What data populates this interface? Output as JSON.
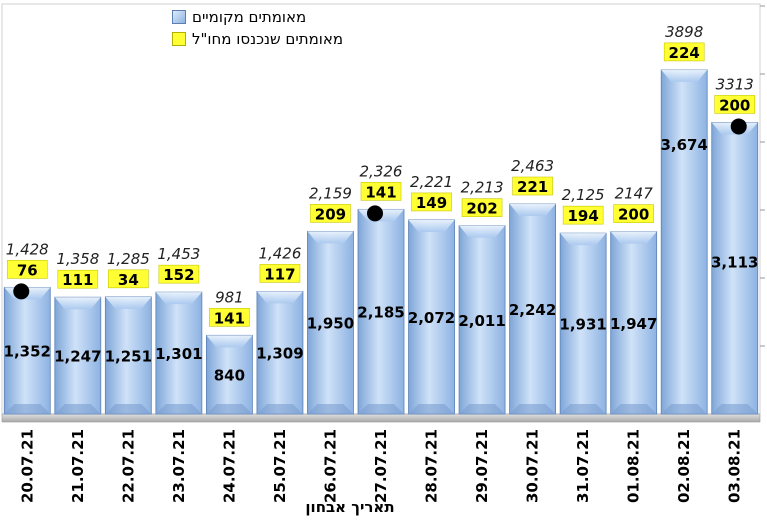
{
  "chart_data": {
    "type": "bar",
    "stacked": true,
    "categories": [
      "20.07.21",
      "21.07.21",
      "22.07.21",
      "23.07.21",
      "24.07.21",
      "25.07.21",
      "26.07.21",
      "27.07.21",
      "28.07.21",
      "29.07.21",
      "30.07.21",
      "31.07.21",
      "01.08.21",
      "02.08.21",
      "03.08.21"
    ],
    "series": [
      {
        "name": "מאומתים מקומיים",
        "values": [
          1352,
          1247,
          1251,
          1301,
          840,
          1309,
          1950,
          2185,
          2072,
          2011,
          2242,
          1931,
          1947,
          3674,
          3113
        ],
        "color": "#9ec3ee"
      },
      {
        "name": "מאומתים שנכנסו מחו\"ל",
        "values": [
          76,
          111,
          34,
          152,
          141,
          117,
          209,
          141,
          149,
          202,
          221,
          194,
          200,
          224,
          200
        ],
        "color": "#ffff33"
      }
    ],
    "totals": [
      "1,428",
      "1,358",
      "1,285",
      "1,453",
      "981",
      "1,426",
      "2,159",
      "2,326",
      "2,221",
      "2,213",
      "2,463",
      "2,125",
      "2147",
      "3898",
      "3313"
    ],
    "local_labels": [
      "1,352",
      "1,247",
      "1,251",
      "1,301",
      "840",
      "1,309",
      "1,950",
      "2,185",
      "2,072",
      "2,011",
      "2,242",
      "1,931",
      "1,947",
      "3,674",
      "3,113"
    ],
    "abroad_labels": [
      "76",
      "111",
      "34",
      "152",
      "141",
      "117",
      "209",
      "141",
      "149",
      "202",
      "221",
      "194",
      "200",
      "224",
      "200"
    ],
    "markers": [
      {
        "category": "20.07.21",
        "y": 1352
      },
      {
        "category": "27.07.21",
        "y": 2185
      },
      {
        "category": "03.08.21",
        "y": 3113
      }
    ],
    "xlabel": "תאריך אבחון",
    "ylim": [
      0,
      4100
    ],
    "legend_position": "top-left",
    "grid": false
  }
}
